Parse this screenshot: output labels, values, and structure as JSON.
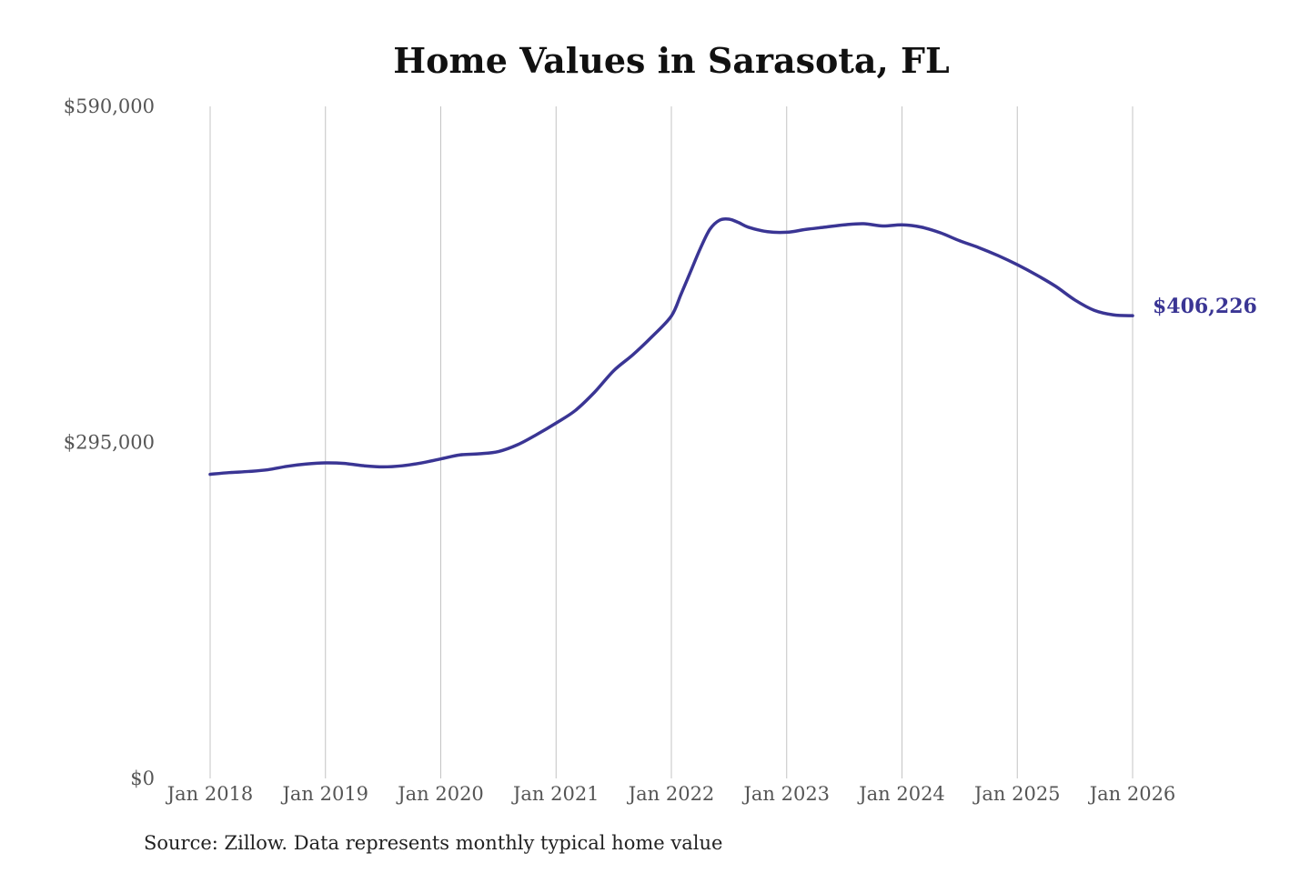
{
  "chart_data": {
    "type": "line",
    "title": "Home Values in Sarasota, FL",
    "xlabel": "",
    "ylabel": "",
    "ylim": [
      0,
      590000
    ],
    "y_ticks": [
      {
        "value": 0,
        "label": "$0"
      },
      {
        "value": 295000,
        "label": "$295,000"
      },
      {
        "value": 590000,
        "label": "$590,000"
      }
    ],
    "x_ticks": [
      {
        "value": "2018-01",
        "label": "Jan 2018"
      },
      {
        "value": "2019-01",
        "label": "Jan 2019"
      },
      {
        "value": "2020-01",
        "label": "Jan 2020"
      },
      {
        "value": "2021-01",
        "label": "Jan 2021"
      },
      {
        "value": "2022-01",
        "label": "Jan 2022"
      },
      {
        "value": "2023-01",
        "label": "Jan 2023"
      },
      {
        "value": "2024-01",
        "label": "Jan 2024"
      },
      {
        "value": "2025-01",
        "label": "Jan 2025"
      },
      {
        "value": "2026-01",
        "label": "Jan 2026"
      }
    ],
    "grid": {
      "vertical": true,
      "horizontal": false
    },
    "legend": "none",
    "line_color": "#3a3594",
    "series": [
      {
        "x": [
          "2018-01",
          "2018-03",
          "2018-05",
          "2018-07",
          "2018-09",
          "2018-11",
          "2019-01",
          "2019-03",
          "2019-05",
          "2019-07",
          "2019-09",
          "2019-11",
          "2020-01",
          "2020-03",
          "2020-05",
          "2020-07",
          "2020-09",
          "2020-11",
          "2021-01",
          "2021-03",
          "2021-05",
          "2021-07",
          "2021-09",
          "2021-11",
          "2022-01",
          "2022-02",
          "2022-03",
          "2022-04",
          "2022-05",
          "2022-06",
          "2022-07",
          "2022-08",
          "2022-09",
          "2022-11",
          "2023-01",
          "2023-03",
          "2023-05",
          "2023-07",
          "2023-09",
          "2023-11",
          "2024-01",
          "2024-03",
          "2024-05",
          "2024-07",
          "2024-09",
          "2024-11",
          "2025-01",
          "2025-03",
          "2025-05",
          "2025-07",
          "2025-09",
          "2025-11",
          "2026-01"
        ],
        "values": [
          267000,
          268500,
          269500,
          271000,
          274000,
          276000,
          277000,
          276500,
          274500,
          273500,
          274500,
          277000,
          280500,
          284000,
          285000,
          287000,
          293000,
          302000,
          312000,
          323000,
          339000,
          358000,
          372000,
          388000,
          406000,
          425000,
          445000,
          465000,
          482000,
          490000,
          491000,
          488000,
          484000,
          480000,
          479500,
          482000,
          484000,
          486000,
          487000,
          485000,
          486000,
          484000,
          479000,
          472000,
          466000,
          459000,
          451000,
          442000,
          432000,
          420000,
          411000,
          407000,
          406226
        ]
      }
    ],
    "end_label": "$406,226",
    "source": "Source: Zillow. Data represents monthly typical home value"
  }
}
